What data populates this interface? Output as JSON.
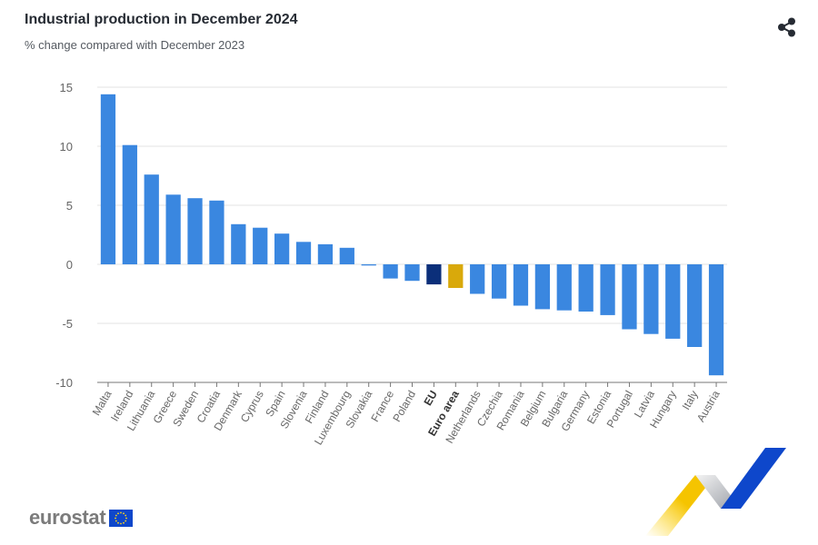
{
  "header": {
    "title": "Industrial production in December 2024",
    "subtitle": "% change compared with December 2023",
    "share_icon": "share-icon"
  },
  "footer": {
    "logo_text": "eurostat",
    "flag_icon": "eu-flag-icon",
    "decoration": "ribbon-graphic"
  },
  "colors": {
    "bar": "#3a87e0",
    "eu": "#0b2f7a",
    "euro_area": "#d9a90b",
    "grid": "#e3e3e3",
    "axis": "#777777"
  },
  "chart_data": {
    "type": "bar",
    "title": "Industrial production in December 2024",
    "subtitle": "% change compared with December 2023",
    "xlabel": "",
    "ylabel": "",
    "ylim": [
      -10,
      15
    ],
    "yticks": [
      15,
      10,
      5,
      0,
      -5,
      -10
    ],
    "grid": true,
    "legend": "none",
    "categories": [
      "Malta",
      "Ireland",
      "Lithuania",
      "Greece",
      "Sweden",
      "Croatia",
      "Denmark",
      "Cyprus",
      "Spain",
      "Slovenia",
      "Finland",
      "Luxembourg",
      "Slovakia",
      "France",
      "Poland",
      "EU",
      "Euro area",
      "Netherlands",
      "Czechia",
      "Romania",
      "Belgium",
      "Bulgaria",
      "Germany",
      "Estonia",
      "Portugal",
      "Latvia",
      "Hungary",
      "Italy",
      "Austria"
    ],
    "values": [
      14.4,
      10.1,
      7.6,
      5.9,
      5.6,
      5.4,
      3.4,
      3.1,
      2.6,
      1.9,
      1.7,
      1.4,
      -0.1,
      -1.2,
      -1.4,
      -1.7,
      -2.0,
      -2.5,
      -2.9,
      -3.5,
      -3.8,
      -3.9,
      -4.0,
      -4.3,
      -5.5,
      -5.9,
      -6.3,
      -7.0,
      -9.4
    ],
    "highlight": {
      "EU": "eu",
      "Euro area": "euro_area"
    },
    "bold_labels": [
      "EU",
      "Euro area"
    ]
  }
}
